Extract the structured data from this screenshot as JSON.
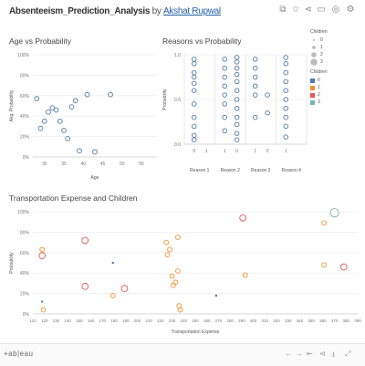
{
  "header": {
    "title": "Absenteeism_Prediction_Analysis",
    "by": "by",
    "author": "Akshat Rupwal",
    "toolbar_icons": [
      "share-icon",
      "star-icon",
      "link-icon",
      "download-icon",
      "fullscreen-icon",
      "info-icon"
    ]
  },
  "panels": {
    "age": {
      "title": "Age vs Probability"
    },
    "reasons": {
      "title": "Reasons vs Probability"
    },
    "transport": {
      "title": "Transportation Expense and Children"
    }
  },
  "legend": {
    "size_title": "Children",
    "size_items": [
      "0",
      "1",
      "2",
      "3"
    ],
    "color_title": "Children",
    "color_items": [
      "0",
      "1",
      "2",
      "3"
    ],
    "colors": [
      "#4e79a7",
      "#f28e2b",
      "#e15759",
      "#76b7b2"
    ]
  },
  "chart_data": [
    {
      "type": "scatter",
      "title": "Age vs Probability",
      "xlabel": "Age",
      "ylabel": "Avg. Probability",
      "xticks": [
        "30",
        "35",
        "40",
        "45",
        "50",
        "55"
      ],
      "yticks": [
        "0%",
        "20%",
        "40%",
        "60%",
        "80%",
        "100%"
      ],
      "xlim": [
        27,
        59
      ],
      "ylim": [
        0,
        100
      ],
      "points": [
        {
          "x": 28,
          "y": 57
        },
        {
          "x": 29,
          "y": 28
        },
        {
          "x": 30,
          "y": 35
        },
        {
          "x": 31,
          "y": 44
        },
        {
          "x": 32,
          "y": 48
        },
        {
          "x": 33,
          "y": 46
        },
        {
          "x": 34,
          "y": 35
        },
        {
          "x": 35,
          "y": 26
        },
        {
          "x": 36,
          "y": 18
        },
        {
          "x": 37,
          "y": 49
        },
        {
          "x": 38,
          "y": 55
        },
        {
          "x": 39,
          "y": 6
        },
        {
          "x": 41,
          "y": 61
        },
        {
          "x": 43,
          "y": 5
        },
        {
          "x": 47,
          "y": 61
        }
      ],
      "color": "#4e79a7",
      "grid": true
    },
    {
      "type": "scatter",
      "title": "Reasons vs Probability",
      "ylabel": "Probability",
      "yticks": [
        "0.0",
        "0.5",
        "1.0"
      ],
      "ylim": [
        0,
        1
      ],
      "facets": [
        "Reason 1",
        "Reason 2",
        "Reason 3",
        "Reason 4"
      ],
      "xticks": [
        "0",
        "1",
        "1",
        "0",
        "1",
        "0",
        "1"
      ],
      "columns": [
        {
          "facet": 0,
          "col": 0,
          "y": [
            0.05,
            0.1,
            0.2,
            0.3,
            0.45,
            0.6,
            0.68,
            0.75,
            0.8,
            0.9,
            0.95
          ]
        },
        {
          "facet": 1,
          "col": 0,
          "y": [
            0.15,
            0.3,
            0.45,
            0.55,
            0.65,
            0.75,
            0.85,
            0.95
          ]
        },
        {
          "facet": 1,
          "col": 1,
          "y": [
            0.05,
            0.12,
            0.22,
            0.3,
            0.4,
            0.5,
            0.6,
            0.7,
            0.78,
            0.85,
            0.92,
            0.97
          ]
        },
        {
          "facet": 2,
          "col": 0,
          "y": [
            0.3,
            0.55,
            0.65,
            0.75,
            0.85,
            0.95
          ]
        },
        {
          "facet": 2,
          "col": 1,
          "y": [
            0.35,
            0.55
          ]
        },
        {
          "facet": 3,
          "col": 0,
          "y": [
            0.08,
            0.2,
            0.3,
            0.4,
            0.5,
            0.6,
            0.7,
            0.8,
            0.9,
            0.97
          ]
        }
      ],
      "color": "#4e79a7",
      "grid": true
    },
    {
      "type": "scatter",
      "title": "Transportation Expense and Children",
      "xlabel": "Transportation Expense",
      "ylabel": "Probability",
      "xticks": [
        "110",
        "120",
        "130",
        "140",
        "150",
        "160",
        "170",
        "180",
        "190",
        "200",
        "210",
        "220",
        "230",
        "240",
        "250",
        "260",
        "270",
        "280",
        "290",
        "300",
        "310",
        "320",
        "330",
        "340",
        "350",
        "360",
        "370",
        "380",
        "390"
      ],
      "yticks": [
        "0%",
        "20%",
        "40%",
        "60%",
        "80%",
        "100%"
      ],
      "xlim": [
        110,
        390
      ],
      "ylim": [
        0,
        100
      ],
      "points": [
        {
          "x": 118,
          "y": 63,
          "c": 1,
          "s": 1
        },
        {
          "x": 118,
          "y": 57,
          "c": 2,
          "s": 2
        },
        {
          "x": 118,
          "y": 12,
          "c": 0,
          "s": 0
        },
        {
          "x": 119,
          "y": 4,
          "c": 1,
          "s": 1
        },
        {
          "x": 155,
          "y": 72,
          "c": 2,
          "s": 2
        },
        {
          "x": 155,
          "y": 27,
          "c": 2,
          "s": 2
        },
        {
          "x": 179,
          "y": 50,
          "c": 0,
          "s": 0
        },
        {
          "x": 179,
          "y": 18,
          "c": 1,
          "s": 1
        },
        {
          "x": 189,
          "y": 25,
          "c": 2,
          "s": 2
        },
        {
          "x": 225,
          "y": 70,
          "c": 1,
          "s": 1
        },
        {
          "x": 226,
          "y": 58,
          "c": 1,
          "s": 1
        },
        {
          "x": 228,
          "y": 63,
          "c": 1,
          "s": 1
        },
        {
          "x": 230,
          "y": 37,
          "c": 1,
          "s": 1
        },
        {
          "x": 231,
          "y": 28,
          "c": 1,
          "s": 1
        },
        {
          "x": 233,
          "y": 31,
          "c": 1,
          "s": 1
        },
        {
          "x": 235,
          "y": 75,
          "c": 1,
          "s": 1
        },
        {
          "x": 235,
          "y": 42,
          "c": 1,
          "s": 1
        },
        {
          "x": 236,
          "y": 8,
          "c": 1,
          "s": 1
        },
        {
          "x": 237,
          "y": 4,
          "c": 1,
          "s": 1
        },
        {
          "x": 268,
          "y": 18,
          "c": 0,
          "s": 0
        },
        {
          "x": 291,
          "y": 94,
          "c": 2,
          "s": 2
        },
        {
          "x": 293,
          "y": 38,
          "c": 1,
          "s": 1
        },
        {
          "x": 361,
          "y": 89,
          "c": 1,
          "s": 1
        },
        {
          "x": 361,
          "y": 48,
          "c": 1,
          "s": 1
        },
        {
          "x": 370,
          "y": 99,
          "c": 3,
          "s": 3
        },
        {
          "x": 378,
          "y": 46,
          "c": 2,
          "s": 2
        }
      ],
      "grid": true
    }
  ],
  "footer": {
    "brand": "+ab|eau",
    "controls": [
      "undo-icon",
      "redo-icon",
      "revert-icon",
      "share-icon",
      "download-icon",
      "fullscreen-icon"
    ]
  }
}
